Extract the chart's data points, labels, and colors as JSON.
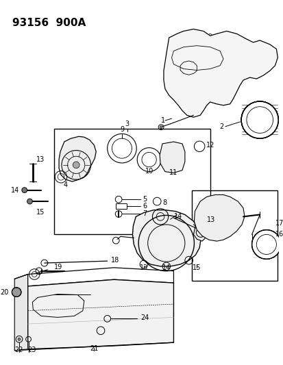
{
  "title": "93156  900A",
  "bg_color": "#ffffff",
  "line_color": "#000000",
  "fig_width": 4.14,
  "fig_height": 5.33,
  "dpi": 100,
  "title_fontsize": 11,
  "label_fontsize": 7
}
